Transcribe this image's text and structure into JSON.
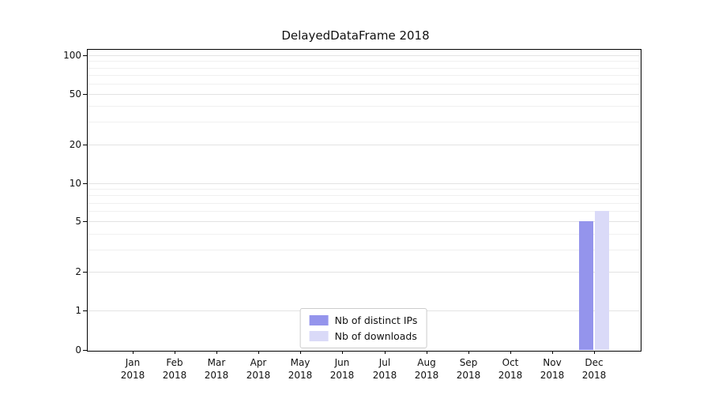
{
  "chart_data": {
    "type": "bar",
    "title": "DelayedDataFrame 2018",
    "categories": [
      "Jan",
      "Feb",
      "Mar",
      "Apr",
      "May",
      "Jun",
      "Jul",
      "Aug",
      "Sep",
      "Oct",
      "Nov",
      "Dec"
    ],
    "category_year": "2018",
    "series": [
      {
        "name": "Nb of distinct IPs",
        "color": "#9494ec",
        "values": [
          0,
          0,
          0,
          0,
          0,
          0,
          0,
          0,
          0,
          0,
          0,
          5
        ]
      },
      {
        "name": "Nb of downloads",
        "color": "#dadaf8",
        "values": [
          0,
          0,
          0,
          0,
          0,
          0,
          0,
          0,
          0,
          0,
          0,
          6
        ]
      }
    ],
    "y_scale": "symlog",
    "y_ticks": [
      0,
      1,
      2,
      5,
      10,
      20,
      50,
      100
    ],
    "y_minor_ticks": [
      3,
      4,
      6,
      7,
      8,
      9,
      30,
      40,
      60,
      70,
      80,
      90
    ],
    "ylim": [
      0,
      112
    ],
    "grid": true,
    "legend_position": "lower center",
    "axis_color": "#000000",
    "grid_color": "#e3e3e3"
  }
}
